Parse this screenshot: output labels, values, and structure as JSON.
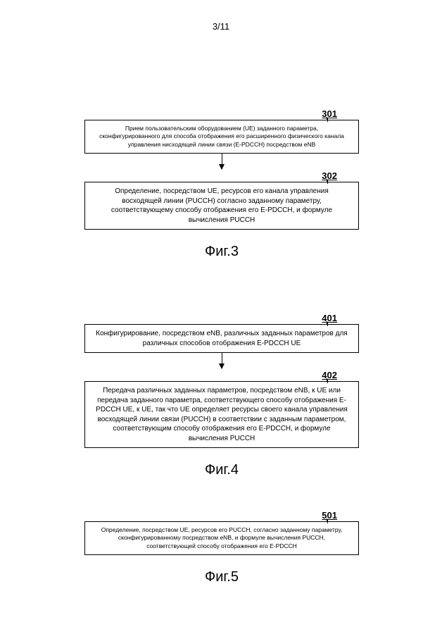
{
  "page_number": "3/11",
  "figures": {
    "fig3": {
      "boxes": [
        {
          "label": "301",
          "text": "Прием пользовательским оборудованием (UE) заданного параметра, сконфигурированного для способа отображения его расширенного физического канала управления нисходящей линии связи (E-PDCCH) посредством eNB"
        },
        {
          "label": "302",
          "text": "Определение, посредством UE, ресурсов его канала управления восходящей линии (PUCCH) согласно заданному параметру, соответствующему способу отображения его E-PDCCH, и формуле вычисления PUCCH"
        }
      ],
      "caption": "Фиг.3"
    },
    "fig4": {
      "boxes": [
        {
          "label": "401",
          "text": "Конфигурирование, посредством eNB, различных заданных параметров для различных способов отображения E-PDCCH UE"
        },
        {
          "label": "402",
          "text": "Передача различных заданных параметров, посредством eNB, к UE или передача заданного параметра, соответствующего способу отображения E-PDCCH UE, к UE, так что UE определяет ресурсы своего канала управления восходящей линии связи (PUCCH) в соответствии с заданным параметром, соответствующим способу отображения его E-PDCCH, и формуле вычисления PUCCH"
        }
      ],
      "caption": "Фиг.4"
    },
    "fig5": {
      "boxes": [
        {
          "label": "501",
          "text": "Определение, посредством UE, ресурсов его PUCCH, согласно заданному параметру, сконфигурированному посредством eNB, и формуле вычисления PUCCH, соответствующей способу отображения его E-PDCCH"
        }
      ],
      "caption": "Фиг.5"
    }
  },
  "colors": {
    "background": "#ffffff",
    "text": "#000000",
    "border": "#000000"
  }
}
